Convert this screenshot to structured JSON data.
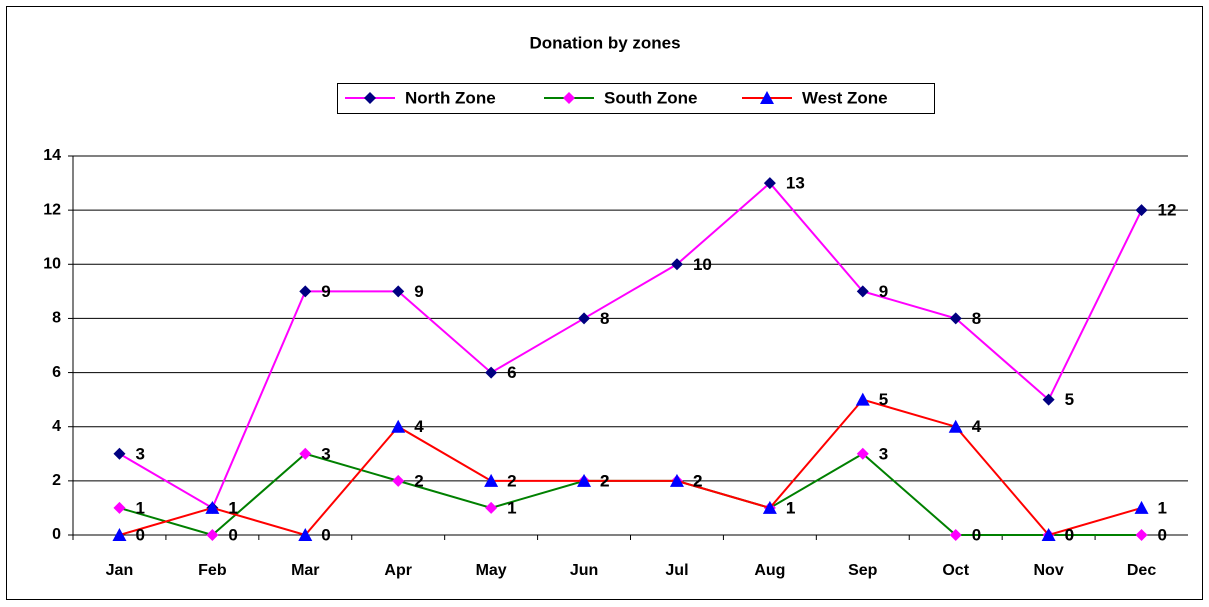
{
  "chart_data": {
    "type": "line",
    "title": "Donation by zones",
    "categories": [
      "Jan",
      "Feb",
      "Mar",
      "Apr",
      "May",
      "Jun",
      "Jul",
      "Aug",
      "Sep",
      "Oct",
      "Nov",
      "Dec"
    ],
    "series": [
      {
        "name": "North Zone",
        "color": "#ff00ff",
        "marker_color": "#000080",
        "marker": "diamond",
        "values": [
          3,
          1,
          9,
          9,
          6,
          8,
          10,
          13,
          9,
          8,
          5,
          12
        ]
      },
      {
        "name": "South Zone",
        "color": "#008000",
        "marker_color": "#ff00ff",
        "marker": "diamond",
        "values": [
          1,
          0,
          3,
          2,
          1,
          2,
          2,
          1,
          3,
          0,
          0,
          0
        ]
      },
      {
        "name": "West Zone",
        "color": "#ff0000",
        "marker_color": "#0000ff",
        "marker": "triangle",
        "values": [
          0,
          1,
          0,
          4,
          2,
          2,
          2,
          1,
          5,
          4,
          0,
          1
        ]
      }
    ],
    "ylim": [
      0,
      14
    ],
    "yticks": [
      0,
      2,
      4,
      6,
      8,
      10,
      12,
      14
    ],
    "grid": true,
    "data_labels": true,
    "legend": "top"
  }
}
